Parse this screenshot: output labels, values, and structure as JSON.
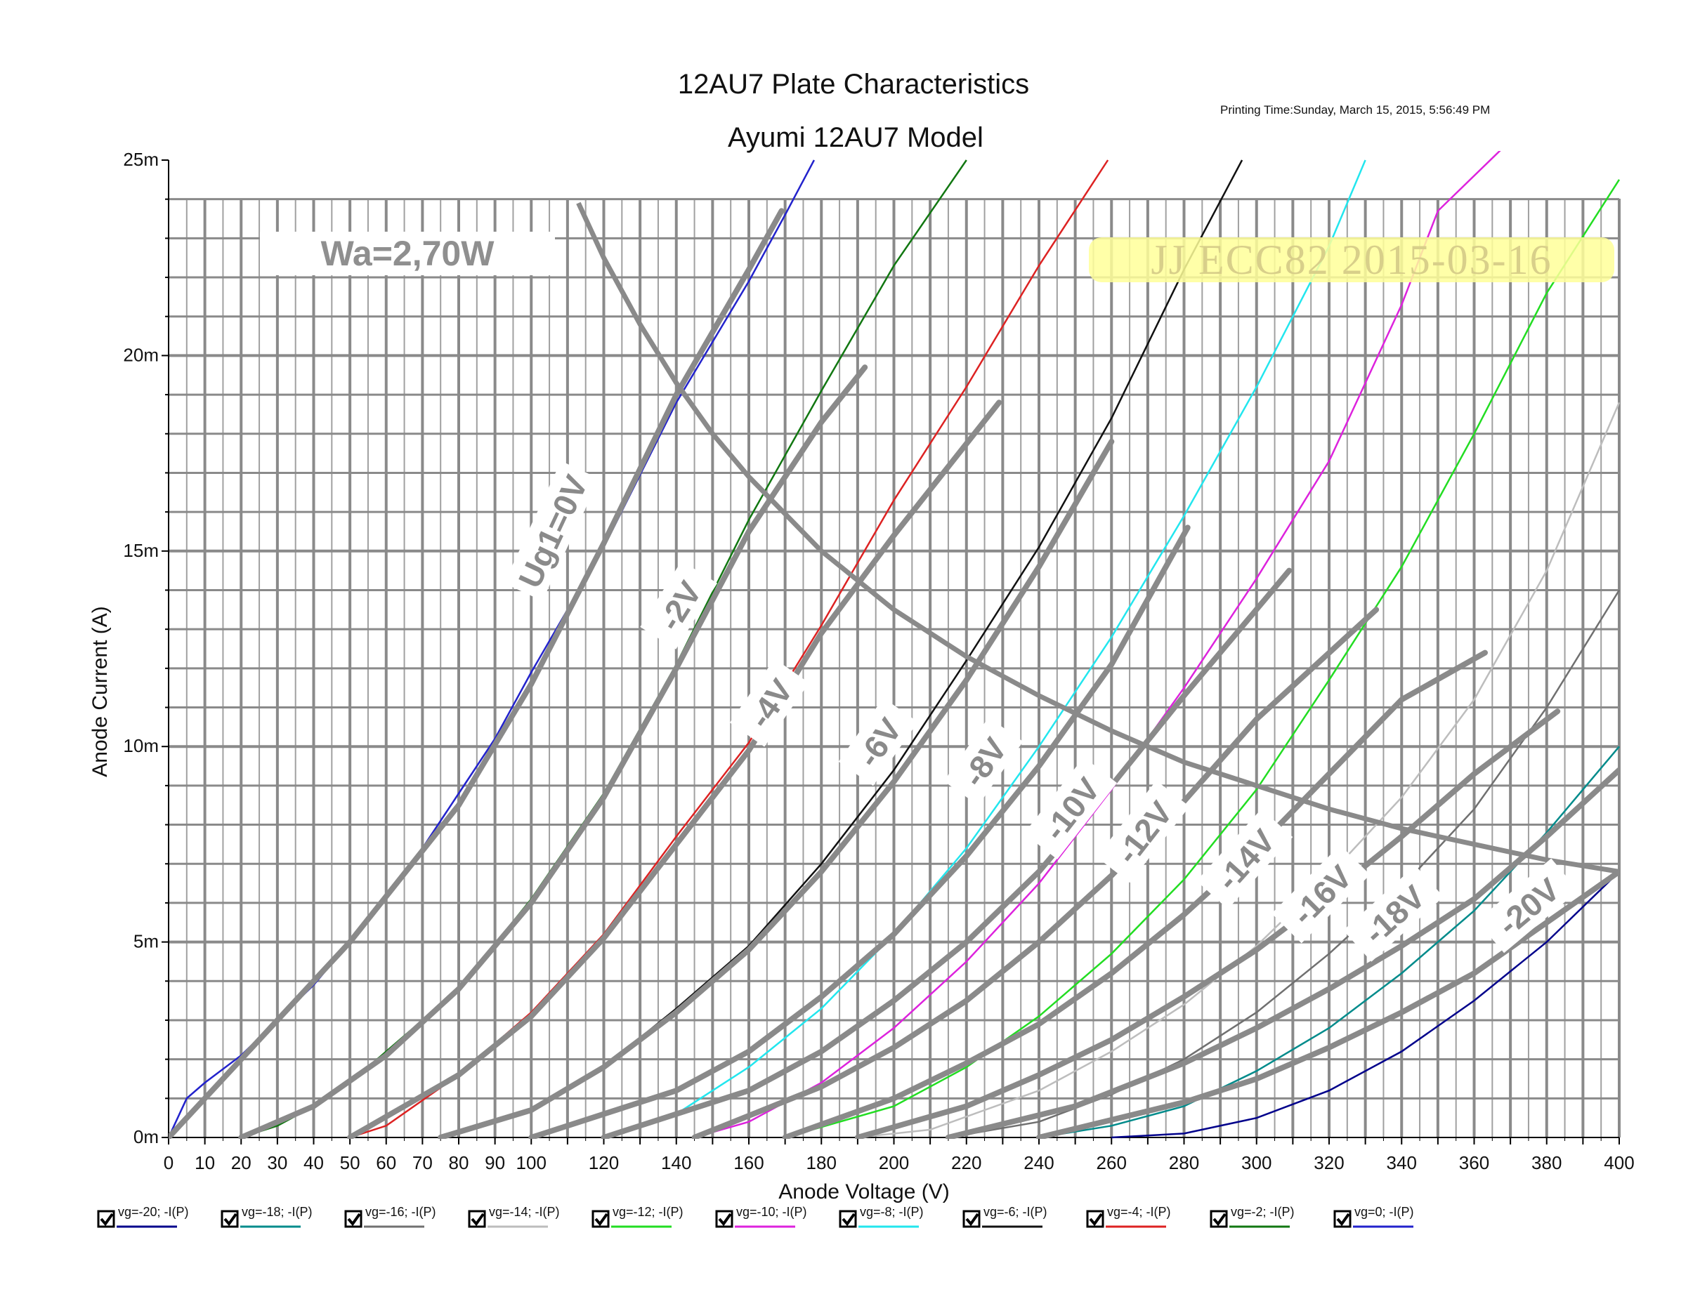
{
  "chart_data": {
    "type": "line",
    "title": "12AU7 Plate Characteristics",
    "subtitle": "Ayumi 12AU7 Model",
    "printing_time": "Printing Time:Sunday, March 15, 2015, 5:56:49 PM",
    "xlabel": "Anode Voltage (V)",
    "ylabel": "Anode Current (A)",
    "xlim": [
      0,
      400
    ],
    "ylim": [
      0,
      0.025
    ],
    "grid": true,
    "x_ticks": [
      0,
      10,
      20,
      30,
      40,
      50,
      60,
      70,
      80,
      90,
      100,
      120,
      140,
      160,
      180,
      200,
      220,
      240,
      260,
      280,
      300,
      320,
      340,
      360,
      380,
      400
    ],
    "x_tick_labels": [
      "0",
      "10",
      "20",
      "30",
      "40",
      "50",
      "60",
      "70",
      "80",
      "90",
      "100",
      "120",
      "140",
      "160",
      "180",
      "200",
      "220",
      "240",
      "260",
      "280",
      "300",
      "320",
      "340",
      "360",
      "380",
      "400"
    ],
    "y_ticks": [
      0,
      0.005,
      0.01,
      0.015,
      0.02,
      0.025
    ],
    "y_tick_labels": [
      "0m",
      "5m",
      "10m",
      "15m",
      "20m",
      "25m"
    ],
    "series": [
      {
        "name": "vg=-20; -I(P)",
        "color": "#00008b",
        "x": [
          260,
          280,
          300,
          320,
          340,
          360,
          380,
          400
        ],
        "y": [
          0,
          0.0001,
          0.0005,
          0.0012,
          0.0022,
          0.0035,
          0.005,
          0.0068
        ]
      },
      {
        "name": "vg=-18; -I(P)",
        "color": "#008b8b",
        "x": [
          240,
          260,
          280,
          300,
          320,
          340,
          360,
          380,
          400
        ],
        "y": [
          0,
          0.0003,
          0.0008,
          0.0017,
          0.0028,
          0.0042,
          0.0058,
          0.0078,
          0.01
        ]
      },
      {
        "name": "vg=-16; -I(P)",
        "color": "#707070",
        "x": [
          215,
          240,
          260,
          280,
          300,
          320,
          340,
          360,
          380,
          400
        ],
        "y": [
          0,
          0.0004,
          0.0011,
          0.002,
          0.0032,
          0.0047,
          0.0064,
          0.0084,
          0.011,
          0.014
        ]
      },
      {
        "name": "vg=-14; -I(P)",
        "color": "#bdbdbd",
        "x": [
          190,
          210,
          240,
          260,
          280,
          300,
          320,
          340,
          360,
          380,
          400
        ],
        "y": [
          0,
          0.0002,
          0.0012,
          0.0022,
          0.0034,
          0.0049,
          0.0067,
          0.0087,
          0.0112,
          0.0145,
          0.0188
        ]
      },
      {
        "name": "vg=-12; -I(P)",
        "color": "#22dd22",
        "x": [
          170,
          200,
          220,
          240,
          260,
          280,
          300,
          320,
          340,
          360,
          380,
          400
        ],
        "y": [
          0,
          0.0008,
          0.0018,
          0.0031,
          0.0047,
          0.0066,
          0.0089,
          0.0117,
          0.0146,
          0.018,
          0.0216,
          0.0245
        ]
      },
      {
        "name": "vg=-10; -I(P)",
        "color": "#dd22dd",
        "x": [
          145,
          160,
          180,
          200,
          220,
          240,
          260,
          280,
          300,
          320,
          340,
          350,
          370
        ],
        "y": [
          0,
          0.0004,
          0.0014,
          0.0028,
          0.0045,
          0.0065,
          0.0089,
          0.0115,
          0.0143,
          0.0173,
          0.0213,
          0.0237,
          0.0255
        ]
      },
      {
        "name": "vg=-8; -I(P)",
        "color": "#22e6ee",
        "x": [
          120,
          140,
          160,
          180,
          200,
          220,
          240,
          260,
          280,
          300,
          320,
          330
        ],
        "y": [
          0,
          0.0006,
          0.0018,
          0.0033,
          0.0052,
          0.0074,
          0.01,
          0.0128,
          0.0159,
          0.0192,
          0.0228,
          0.025
        ]
      },
      {
        "name": "vg=-6; -I(P)",
        "color": "#111111",
        "x": [
          75,
          100,
          120,
          140,
          160,
          180,
          200,
          220,
          240,
          260,
          280,
          296
        ],
        "y": [
          0,
          0.0007,
          0.0018,
          0.0033,
          0.0049,
          0.007,
          0.0094,
          0.0122,
          0.0151,
          0.0184,
          0.0222,
          0.025
        ]
      },
      {
        "name": "vg=-4; -I(P)",
        "color": "#dd2222",
        "x": [
          50,
          60,
          80,
          100,
          120,
          140,
          160,
          180,
          200,
          220,
          240,
          259
        ],
        "y": [
          0,
          0.0003,
          0.0016,
          0.0032,
          0.0052,
          0.0077,
          0.0101,
          0.0131,
          0.0163,
          0.0192,
          0.0223,
          0.025
        ]
      },
      {
        "name": "vg=-2; -I(P)",
        "color": "#117711",
        "x": [
          20,
          30,
          40,
          50,
          60,
          70,
          80,
          100,
          120,
          140,
          160,
          180,
          200,
          220
        ],
        "y": [
          0,
          0.0003,
          0.0008,
          0.0014,
          0.0022,
          0.003,
          0.0038,
          0.0061,
          0.0088,
          0.0121,
          0.0158,
          0.0191,
          0.0223,
          0.025
        ]
      },
      {
        "name": "vg=0; -I(P)",
        "color": "#2222cc",
        "x": [
          0,
          5,
          10,
          20,
          30,
          40,
          50,
          60,
          70,
          80,
          90,
          100,
          120,
          140,
          160,
          170,
          178
        ],
        "y": [
          0,
          0.001,
          0.0014,
          0.0021,
          0.003,
          0.0039,
          0.005,
          0.0061,
          0.0074,
          0.0088,
          0.0102,
          0.0119,
          0.0151,
          0.0188,
          0.0219,
          0.0236,
          0.025
        ]
      }
    ],
    "overlay": {
      "color": "#8a8a8a",
      "curves": [
        {
          "x": [
            0,
            20,
            50,
            80,
            100,
            120,
            140,
            160,
            169
          ],
          "y": [
            0,
            0.002,
            0.005,
            0.0085,
            0.0116,
            0.0152,
            0.019,
            0.0222,
            0.0237
          ]
        },
        {
          "x": [
            20,
            40,
            60,
            80,
            100,
            120,
            140,
            160,
            180,
            192
          ],
          "y": [
            0,
            0.0008,
            0.0021,
            0.0038,
            0.006,
            0.0087,
            0.012,
            0.0155,
            0.0183,
            0.0197
          ]
        },
        {
          "x": [
            50,
            80,
            100,
            120,
            140,
            160,
            180,
            200,
            229
          ],
          "y": [
            0,
            0.0016,
            0.0031,
            0.0051,
            0.0075,
            0.0099,
            0.0129,
            0.0154,
            0.0188
          ]
        },
        {
          "x": [
            75,
            100,
            120,
            140,
            160,
            180,
            200,
            220,
            240,
            260
          ],
          "y": [
            0,
            0.0007,
            0.0018,
            0.0032,
            0.0048,
            0.0068,
            0.0091,
            0.0117,
            0.0146,
            0.0178
          ]
        },
        {
          "x": [
            100,
            140,
            160,
            180,
            200,
            220,
            240,
            260,
            281
          ],
          "y": [
            0,
            0.0012,
            0.0022,
            0.0036,
            0.0052,
            0.0072,
            0.0095,
            0.0121,
            0.0156
          ]
        },
        {
          "x": [
            120,
            160,
            180,
            200,
            220,
            240,
            260,
            280,
            309
          ],
          "y": [
            0,
            0.0012,
            0.0022,
            0.0035,
            0.005,
            0.0068,
            0.009,
            0.0113,
            0.0145
          ]
        },
        {
          "x": [
            145,
            180,
            200,
            220,
            240,
            260,
            280,
            300,
            333
          ],
          "y": [
            0,
            0.0013,
            0.0023,
            0.0035,
            0.005,
            0.0067,
            0.0086,
            0.0107,
            0.0135
          ]
        },
        {
          "x": [
            170,
            200,
            220,
            240,
            260,
            280,
            300,
            320,
            340,
            363
          ],
          "y": [
            0,
            0.001,
            0.0019,
            0.0029,
            0.0042,
            0.0057,
            0.0074,
            0.0093,
            0.0112,
            0.0124
          ]
        },
        {
          "x": [
            190,
            220,
            240,
            260,
            280,
            300,
            320,
            340,
            360,
            383
          ],
          "y": [
            0,
            0.0008,
            0.0016,
            0.0025,
            0.0036,
            0.0048,
            0.0062,
            0.0077,
            0.0093,
            0.0109
          ]
        },
        {
          "x": [
            215,
            250,
            280,
            300,
            320,
            340,
            360,
            380,
            400
          ],
          "y": [
            0,
            0.0008,
            0.0019,
            0.0028,
            0.0038,
            0.0049,
            0.0061,
            0.0077,
            0.0094
          ]
        },
        {
          "x": [
            240,
            280,
            300,
            320,
            340,
            360,
            380,
            400
          ],
          "y": [
            0,
            0.0009,
            0.0015,
            0.0023,
            0.0032,
            0.0042,
            0.0055,
            0.0068
          ]
        }
      ],
      "power_curve": {
        "x": [
          113,
          120,
          130,
          140,
          150,
          160,
          180,
          200,
          220,
          240,
          260,
          280,
          300,
          320,
          340,
          360,
          380,
          400
        ],
        "y": [
          0.0239,
          0.0225,
          0.0208,
          0.0193,
          0.018,
          0.0169,
          0.015,
          0.0135,
          0.0123,
          0.0113,
          0.0104,
          0.0096,
          0.009,
          0.0084,
          0.0079,
          0.0075,
          0.0071,
          0.0068
        ]
      },
      "labels": [
        {
          "text": "Ug1=0V",
          "x": 106,
          "y": 0.0155,
          "angle": -65
        },
        {
          "text": "-2V",
          "x": 141,
          "y": 0.0136,
          "angle": -58
        },
        {
          "text": "-4V",
          "x": 166,
          "y": 0.0111,
          "angle": -55
        },
        {
          "text": "-6V",
          "x": 196,
          "y": 0.0101,
          "angle": -55
        },
        {
          "text": "-8V",
          "x": 225,
          "y": 0.0096,
          "angle": -55
        },
        {
          "text": "-10V",
          "x": 249,
          "y": 0.0084,
          "angle": -52
        },
        {
          "text": "-12V",
          "x": 269,
          "y": 0.0078,
          "angle": -52
        },
        {
          "text": "-14V",
          "x": 297,
          "y": 0.0071,
          "angle": -48
        },
        {
          "text": "-16V",
          "x": 318,
          "y": 0.0062,
          "angle": -45
        },
        {
          "text": "-18V",
          "x": 338,
          "y": 0.0057,
          "angle": -42
        },
        {
          "text": "-20V",
          "x": 375,
          "y": 0.0059,
          "angle": -40
        }
      ],
      "power_label": "Wa=2,70W",
      "stamp": "JJ ECC82 2015-03-16"
    }
  }
}
